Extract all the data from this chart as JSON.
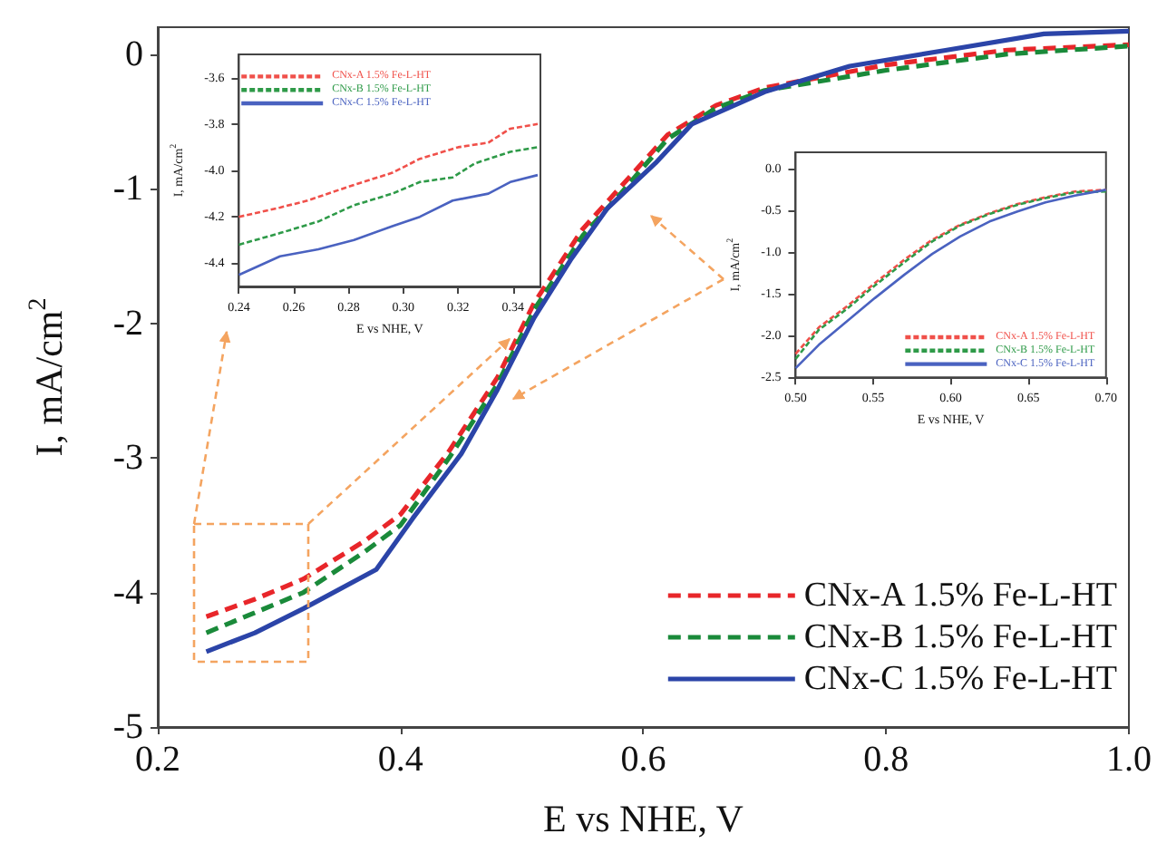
{
  "chart_data": [
    {
      "type": "line",
      "xlabel": "E vs NHE, V",
      "ylabel": "I, mA/cm$^{2}$",
      "xlim": [
        0.2,
        1.0
      ],
      "ylim": [
        -5,
        0.2
      ],
      "xticks": [
        0.2,
        0.4,
        0.6,
        0.8,
        {
          "value": 1.0,
          "label": "1.0"
        }
      ],
      "yticks": [
        -5,
        -4,
        -3,
        -2,
        -1,
        0
      ],
      "grid": false,
      "legend": "bottom right",
      "marker": "none",
      "series": [
        {
          "name": "CNx-A 1.5% Fe-L-HT",
          "color": "#e8262a",
          "line_style": "dashed",
          "x": [
            0.24,
            0.28,
            0.32,
            0.37,
            0.4,
            0.44,
            0.48,
            0.51,
            0.55,
            0.58,
            0.62,
            0.66,
            0.7,
            0.8,
            0.9,
            1.0
          ],
          "values": [
            -4.18,
            -4.05,
            -3.9,
            -3.62,
            -3.42,
            -2.95,
            -2.4,
            -1.85,
            -1.3,
            -1.0,
            -0.6,
            -0.38,
            -0.25,
            -0.08,
            0.03,
            0.07
          ]
        },
        {
          "name": "CNx-B 1.5% Fe-L-HT",
          "color": "#1a8a3a",
          "line_style": "dashed",
          "x": [
            0.24,
            0.28,
            0.32,
            0.37,
            0.4,
            0.44,
            0.48,
            0.51,
            0.55,
            0.58,
            0.62,
            0.66,
            0.7,
            0.8,
            0.9,
            1.0
          ],
          "values": [
            -4.3,
            -4.15,
            -4.0,
            -3.7,
            -3.5,
            -3.0,
            -2.45,
            -1.9,
            -1.35,
            -1.05,
            -0.63,
            -0.4,
            -0.27,
            -0.12,
            0.0,
            0.06
          ]
        },
        {
          "name": "CNx-C 1.5% Fe-L-HT",
          "color": "#2b44a8",
          "line_style": "solid",
          "x": [
            0.24,
            0.28,
            0.32,
            0.38,
            0.41,
            0.45,
            0.48,
            0.51,
            0.54,
            0.57,
            0.61,
            0.64,
            0.7,
            0.77,
            0.85,
            0.93,
            1.0
          ],
          "values": [
            -4.44,
            -4.3,
            -4.12,
            -3.83,
            -3.45,
            -2.97,
            -2.49,
            -1.96,
            -1.53,
            -1.15,
            -0.81,
            -0.52,
            -0.28,
            -0.09,
            0.03,
            0.15,
            0.17
          ]
        }
      ]
    },
    {
      "type": "line",
      "xlabel": "E vs NHE, V",
      "ylabel": "I, mA/cm$^{2}$",
      "xlim": [
        0.24,
        0.35
      ],
      "ylim": [
        -4.5,
        -3.5
      ],
      "xticks": [
        0.24,
        0.26,
        0.28,
        {
          "value": 0.3,
          "label": "0.30"
        },
        0.32,
        0.34
      ],
      "yticks": [
        {
          "value": -4.4,
          "label": "-4.4"
        },
        {
          "value": -4.2,
          "label": "-4.2"
        },
        {
          "value": -4.0,
          "label": "-4.0"
        },
        {
          "value": -3.8,
          "label": "-3.8"
        },
        {
          "value": -3.6,
          "label": "-3.6"
        }
      ],
      "grid": false,
      "legend": "top left",
      "marker": "none",
      "series": [
        {
          "name": "CNx-A 1.5% Fe-L-HT",
          "color": "#f0504a",
          "line_style": "dashed",
          "x": [
            0.24,
            0.255,
            0.265,
            0.28,
            0.296,
            0.306,
            0.32,
            0.331,
            0.339,
            0.349
          ],
          "values": [
            -4.2,
            -4.16,
            -4.13,
            -4.07,
            -4.01,
            -3.95,
            -3.9,
            -3.88,
            -3.82,
            -3.8
          ]
        },
        {
          "name": "CNx-B 1.5% Fe-L-HT",
          "color": "#2e9a48",
          "line_style": "dashed",
          "x": [
            0.24,
            0.255,
            0.269,
            0.282,
            0.296,
            0.306,
            0.318,
            0.326,
            0.339,
            0.349
          ],
          "values": [
            -4.32,
            -4.27,
            -4.22,
            -4.15,
            -4.1,
            -4.05,
            -4.03,
            -3.97,
            -3.92,
            -3.9
          ]
        },
        {
          "name": "CNx-C 1.5% Fe-L-HT",
          "color": "#4a62c0",
          "line_style": "solid",
          "x": [
            0.24,
            0.255,
            0.269,
            0.282,
            0.296,
            0.306,
            0.318,
            0.331,
            0.339,
            0.349
          ],
          "values": [
            -4.45,
            -4.37,
            -4.34,
            -4.3,
            -4.24,
            -4.2,
            -4.13,
            -4.1,
            -4.05,
            -4.02
          ]
        }
      ]
    },
    {
      "type": "line",
      "xlabel": "E vs NHE, V",
      "ylabel": "I, mA/cm$^{2}$",
      "xlim": [
        0.5,
        0.7
      ],
      "ylim": [
        -2.5,
        0.2
      ],
      "xticks": [
        {
          "value": 0.5,
          "label": "0.50"
        },
        0.55,
        {
          "value": 0.6,
          "label": "0.60"
        },
        0.65,
        {
          "value": 0.7,
          "label": "0.70"
        }
      ],
      "yticks": [
        -2.5,
        {
          "value": -2,
          "label": "-2.0"
        },
        -1.5,
        {
          "value": -1,
          "label": "-1.0"
        },
        -0.5,
        {
          "value": 0,
          "label": "0.0"
        }
      ],
      "grid": false,
      "legend": "bottom right",
      "marker": "none",
      "series": [
        {
          "name": "CNx-A 1.5% Fe-L-HT",
          "color": "#f0504a",
          "line_style": "dashed",
          "x": [
            0.5,
            0.515,
            0.533,
            0.551,
            0.57,
            0.588,
            0.606,
            0.625,
            0.643,
            0.661,
            0.68,
            0.7
          ],
          "values": [
            -2.22,
            -1.9,
            -1.65,
            -1.37,
            -1.09,
            -0.85,
            -0.67,
            -0.53,
            -0.42,
            -0.34,
            -0.27,
            -0.25
          ]
        },
        {
          "name": "CNx-B 1.5% Fe-L-HT",
          "color": "#2e9a48",
          "line_style": "dashed",
          "x": [
            0.5,
            0.515,
            0.533,
            0.551,
            0.57,
            0.588,
            0.606,
            0.625,
            0.643,
            0.661,
            0.68,
            0.7
          ],
          "values": [
            -2.28,
            -1.93,
            -1.68,
            -1.4,
            -1.12,
            -0.87,
            -0.68,
            -0.54,
            -0.43,
            -0.35,
            -0.28,
            -0.27
          ]
        },
        {
          "name": "CNx-C 1.5% Fe-L-HT",
          "color": "#4a62c0",
          "line_style": "solid",
          "x": [
            0.5,
            0.515,
            0.533,
            0.551,
            0.57,
            0.588,
            0.606,
            0.625,
            0.643,
            0.661,
            0.68,
            0.7
          ],
          "values": [
            -2.39,
            -2.11,
            -1.83,
            -1.55,
            -1.27,
            -1.02,
            -0.81,
            -0.63,
            -0.51,
            -0.4,
            -0.32,
            -0.25
          ]
        }
      ]
    }
  ]
}
